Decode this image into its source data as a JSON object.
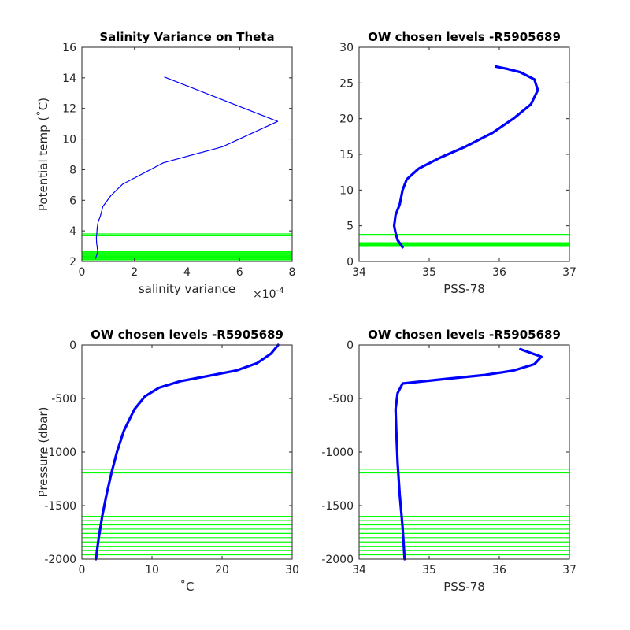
{
  "colors": {
    "profile": "#0000ff",
    "chosen_level": "#00ff00",
    "axis": "#262626",
    "background": "#ffffff"
  },
  "chart_data": [
    {
      "id": "salvar",
      "type": "line",
      "title": "Salinity Variance on Theta",
      "xlabel": "salinity variance",
      "ylabel": "Potential temp (˚C)",
      "x_exponent": "×10",
      "x_exponent_power": "-4",
      "xlim": [
        0,
        8
      ],
      "ylim": [
        2,
        16
      ],
      "xticks": [
        "0",
        "2",
        "4",
        "6",
        "8"
      ],
      "yticks": [
        "2",
        "4",
        "6",
        "8",
        "10",
        "12",
        "14",
        "16"
      ],
      "series": [
        {
          "x": [
            3.15,
            7.45,
            5.35,
            3.1,
            1.55,
            1.1,
            0.8,
            0.7,
            0.62,
            0.58,
            0.57,
            0.55,
            0.56,
            0.58,
            0.6,
            0.58,
            0.55,
            0.5
          ],
          "y": [
            14.05,
            11.15,
            9.5,
            8.45,
            7.05,
            6.3,
            5.6,
            4.95,
            4.6,
            4.2,
            3.85,
            3.55,
            3.2,
            2.95,
            2.7,
            2.5,
            2.35,
            2.15
          ]
        }
      ],
      "chosen_levels": [
        3.8,
        3.68,
        2.64,
        2.58,
        2.52,
        2.46,
        2.4,
        2.34,
        2.28,
        2.22,
        2.16,
        2.1
      ]
    },
    {
      "id": "theta_sal",
      "type": "line",
      "title": "OW chosen levels -R5905689",
      "xlabel": "PSS-78",
      "ylabel": "",
      "xlim": [
        34,
        37
      ],
      "ylim": [
        0,
        30
      ],
      "xticks": [
        "34",
        "35",
        "36",
        "37"
      ],
      "yticks": [
        "0",
        "5",
        "10",
        "15",
        "20",
        "25",
        "30"
      ],
      "series": [
        {
          "x": [
            34.62,
            34.55,
            34.52,
            34.5,
            34.52,
            34.58,
            34.62,
            34.68,
            34.85,
            35.15,
            35.5,
            35.9,
            36.2,
            36.45,
            36.55,
            36.5,
            36.3,
            36.1,
            35.95
          ],
          "y": [
            2.0,
            3.0,
            4.0,
            5.0,
            6.5,
            8.0,
            10.0,
            11.5,
            13.0,
            14.5,
            16.0,
            18.0,
            20.0,
            22.0,
            24.0,
            25.5,
            26.5,
            27.0,
            27.3
          ]
        }
      ],
      "chosen_levels": [
        3.8,
        3.68,
        2.64,
        2.58,
        2.52,
        2.46,
        2.4,
        2.34,
        2.28,
        2.22,
        2.16,
        2.1
      ]
    },
    {
      "id": "pres_temp",
      "type": "line",
      "title": "OW chosen levels -R5905689",
      "xlabel": "˚C",
      "ylabel": "Pressure (dbar)",
      "xlim": [
        0,
        30
      ],
      "ylim": [
        -2000,
        0
      ],
      "xticks": [
        "0",
        "10",
        "20",
        "30"
      ],
      "yticks": [
        "-2000",
        "-1500",
        "-1000",
        "-500",
        "0"
      ],
      "series": [
        {
          "x": [
            2.0,
            2.4,
            2.9,
            3.5,
            4.2,
            5.0,
            6.0,
            7.5,
            9.0,
            11.0,
            14.0,
            18.0,
            22.0,
            25.0,
            27.0,
            28.0
          ],
          "y": [
            -2000,
            -1800,
            -1600,
            -1400,
            -1200,
            -1000,
            -800,
            -600,
            -480,
            -400,
            -340,
            -290,
            -240,
            -170,
            -80,
            0
          ]
        }
      ],
      "chosen_levels": [
        -1160,
        -1195,
        -1600,
        -1640,
        -1680,
        -1720,
        -1760,
        -1800,
        -1840,
        -1880,
        -1920,
        -1960
      ]
    },
    {
      "id": "pres_sal",
      "type": "line",
      "title": "OW chosen levels -R5905689",
      "xlabel": "PSS-78",
      "ylabel": "",
      "xlim": [
        34,
        37
      ],
      "ylim": [
        -2000,
        0
      ],
      "xticks": [
        "34",
        "35",
        "36",
        "37"
      ],
      "yticks": [
        "-2000",
        "-1500",
        "-1000",
        "-500",
        "0"
      ],
      "series": [
        {
          "x": [
            34.65,
            34.62,
            34.58,
            34.55,
            34.53,
            34.52,
            34.55,
            34.62,
            35.2,
            35.8,
            36.2,
            36.5,
            36.6,
            36.3
          ],
          "y": [
            -2000,
            -1700,
            -1400,
            -1100,
            -800,
            -600,
            -450,
            -360,
            -320,
            -280,
            -240,
            -180,
            -110,
            -40
          ]
        }
      ],
      "chosen_levels": [
        -1160,
        -1195,
        -1600,
        -1640,
        -1680,
        -1720,
        -1760,
        -1800,
        -1840,
        -1880,
        -1920,
        -1960
      ]
    }
  ]
}
